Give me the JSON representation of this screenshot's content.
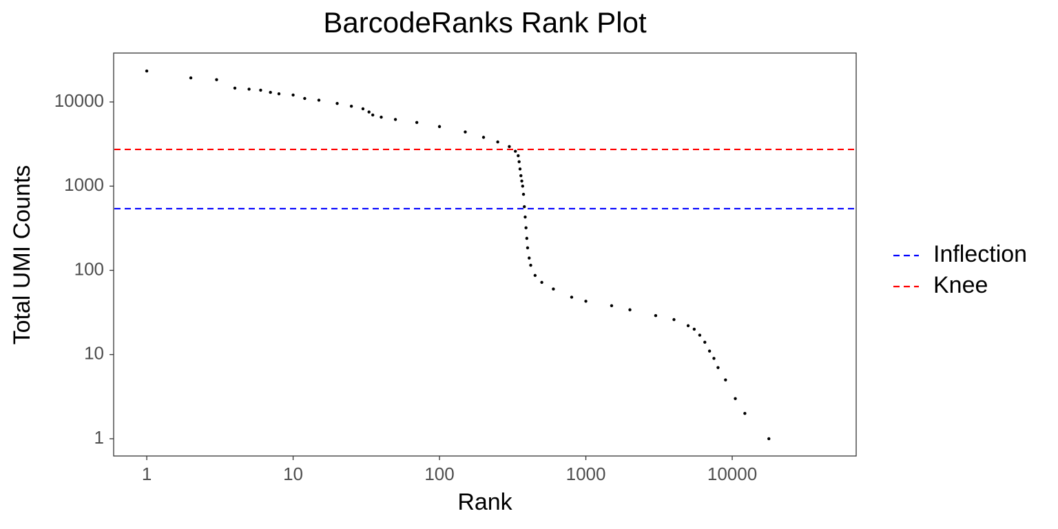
{
  "chart_data": {
    "type": "scatter",
    "title": "BarcodeRanks Rank Plot",
    "x_label": "Rank",
    "y_label": "Total UMI Counts",
    "x": [
      1,
      2,
      3,
      4,
      5,
      6,
      7,
      8,
      10,
      12,
      15,
      20,
      25,
      30,
      33,
      35,
      40,
      50,
      70,
      100,
      150,
      200,
      250,
      300,
      330,
      345,
      350,
      355,
      360,
      365,
      370,
      375,
      380,
      385,
      390,
      395,
      400,
      410,
      420,
      450,
      500,
      600,
      800,
      1000,
      1500,
      2000,
      3000,
      4000,
      5000,
      5500,
      6000,
      6500,
      7000,
      7500,
      8000,
      9000,
      10500,
      12200,
      17800
    ],
    "values": [
      23300,
      19300,
      18400,
      14600,
      14200,
      13800,
      13000,
      12500,
      12100,
      11000,
      10500,
      9600,
      8900,
      8300,
      7600,
      7000,
      6600,
      6200,
      5700,
      5100,
      4400,
      3800,
      3350,
      2950,
      2600,
      2300,
      1950,
      1600,
      1330,
      1150,
      1000,
      800,
      570,
      430,
      320,
      240,
      185,
      140,
      115,
      87,
      72,
      60,
      48,
      43,
      38,
      34,
      29,
      26,
      22,
      20,
      17,
      14,
      11,
      9,
      7,
      5,
      3,
      2,
      1
    ],
    "color": "#000000",
    "hlines": [
      {
        "name": "Inflection",
        "value": 540,
        "color": "#0000ff"
      },
      {
        "name": "Knee",
        "value": 2730,
        "color": "#ff0000"
      }
    ],
    "xlog": true,
    "ylog": true,
    "xlim": [
      0.594,
      70300
    ],
    "ylim": [
      0.624,
      38100
    ],
    "xticks": [
      1,
      10,
      100,
      1000,
      10000
    ],
    "yticks": [
      1,
      10,
      100,
      1000,
      10000
    ],
    "grid": false,
    "legend": "right"
  }
}
